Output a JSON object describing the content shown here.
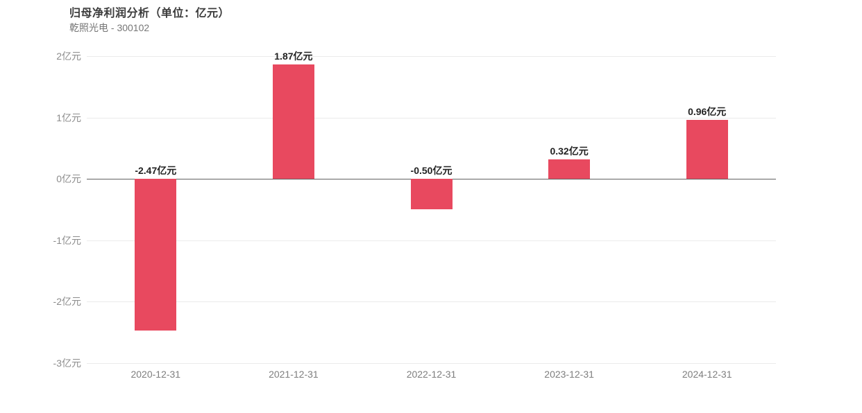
{
  "header": {
    "title": "归母净利润分析（单位：亿元）",
    "subtitle": "乾照光电 - 300102"
  },
  "chart_data": {
    "type": "bar",
    "title": "归母净利润分析（单位：亿元）",
    "subtitle": "乾照光电 - 300102",
    "unit": "亿元",
    "categories": [
      "2020-12-31",
      "2021-12-31",
      "2022-12-31",
      "2023-12-31",
      "2024-12-31"
    ],
    "values": [
      -2.47,
      1.87,
      -0.5,
      0.32,
      0.96
    ],
    "value_labels": [
      "-2.47亿元",
      "1.87亿元",
      "-0.50亿元",
      "0.32亿元",
      "0.96亿元"
    ],
    "ylim": [
      -3,
      2
    ],
    "yticks": [
      {
        "value": 2,
        "label": "2亿元"
      },
      {
        "value": 1,
        "label": "1亿元"
      },
      {
        "value": 0,
        "label": "0亿元"
      },
      {
        "value": -1,
        "label": "-1亿元"
      },
      {
        "value": -2,
        "label": "-2亿元"
      },
      {
        "value": -3,
        "label": "-3亿元"
      }
    ],
    "grid": true,
    "legend": false,
    "xlabel": "",
    "ylabel": ""
  },
  "colors": {
    "bar": "#e8495f",
    "grid": "#ebebeb",
    "zero_axis": "#606060",
    "axis_text": "#8c8c8c",
    "value_label": "#222222",
    "title": "#3c3c3c",
    "subtitle": "#767676",
    "background": "#ffffff"
  }
}
